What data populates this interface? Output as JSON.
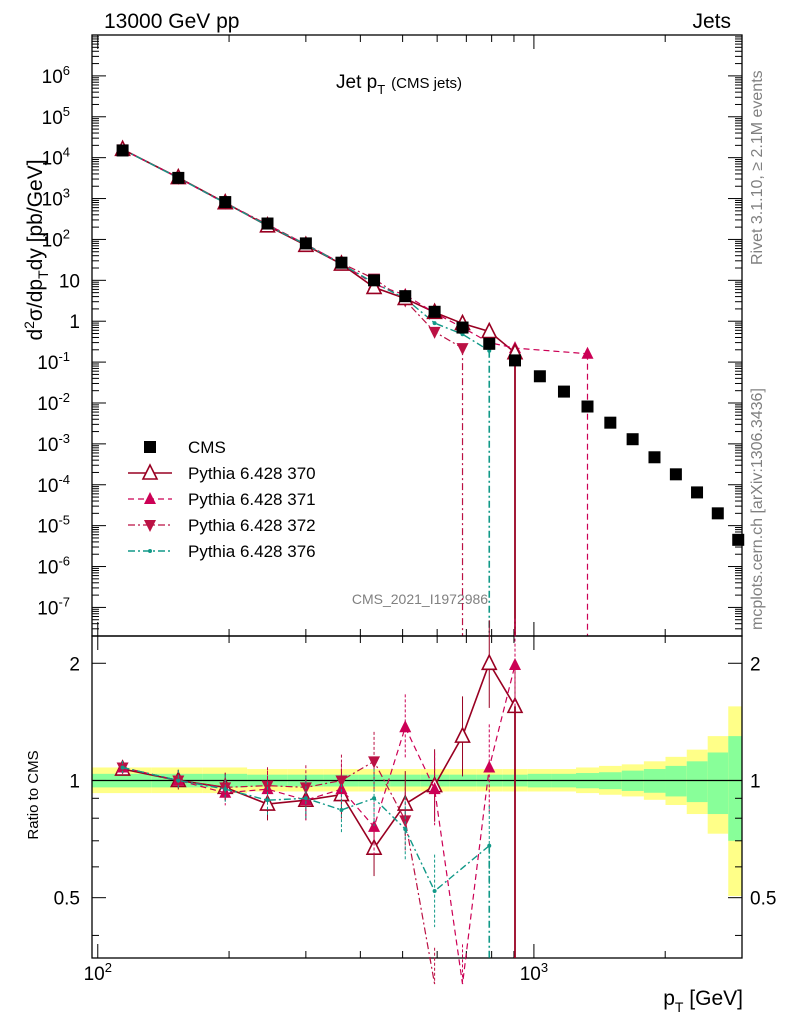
{
  "header": {
    "left": "13000 GeV pp",
    "right": "Jets"
  },
  "side_labels": {
    "rivet": "Rivet 3.1.10, ≥ 2.1M events",
    "mcplots": "mcplots.cern.ch [arXiv:1306.3436]"
  },
  "watermark": "CMS_2021_I1972986",
  "colors": {
    "cms": "#000000",
    "p370": "#990022",
    "p371": "#cc0055",
    "p372": "#bb1144",
    "p376": "#119988",
    "band_yellow": "#ffff88",
    "band_green": "#88ff99"
  },
  "chart_data": [
    {
      "type": "scatter",
      "title": "Jet p_T (CMS jets)",
      "title_main": "Jet p",
      "title_sub": "T",
      "title_note": "(CMS jets)",
      "ylabel": "d²σ/dp_T dy [pb/GeV]",
      "xlabel": "p_T [GeV]",
      "xscale": "log",
      "yscale": "log",
      "xlim": [
        97,
        3000
      ],
      "ylim": [
        2e-08,
        10000000.0
      ],
      "ytick_labels": [
        "10^-7",
        "10^-6",
        "10^-5",
        "10^-4",
        "10^-3",
        "10^-2",
        "10^-1",
        "1",
        "10",
        "10^2",
        "10^3",
        "10^4",
        "10^5",
        "10^6"
      ],
      "xtick_labels": [
        "10^2",
        "10^3"
      ],
      "legend": {
        "position": "bottom-left",
        "entries": [
          "CMS",
          "Pythia 6.428 370",
          "Pythia 6.428 371",
          "Pythia 6.428 372",
          "Pythia 6.428 376"
        ]
      },
      "series": [
        {
          "name": "CMS",
          "style": "square",
          "x": [
            114,
            153,
            196,
            245,
            300,
            362,
            430,
            507,
            592,
            686,
            790,
            905,
            1032,
            1172,
            1327,
            1497,
            1684,
            1890,
            2116,
            2366,
            2640,
            2941
          ],
          "y": [
            15000,
            3200,
            820,
            245,
            80,
            27,
            10,
            4.1,
            1.7,
            0.7,
            0.28,
            0.11,
            0.045,
            0.019,
            0.0082,
            0.0033,
            0.0013,
            0.00047,
            0.00018,
            6.5e-05,
            2e-05,
            4.5e-06
          ]
        },
        {
          "name": "Pythia 6.428 370",
          "style": "open-triangle-solid",
          "x": [
            114,
            153,
            196,
            245,
            300,
            362,
            430,
            507,
            592,
            686,
            790,
            905
          ],
          "y": [
            16000,
            3250,
            790,
            215,
            72,
            25,
            6.7,
            3.6,
            1.65,
            0.88,
            0.56,
            0.17
          ]
        },
        {
          "name": "Pythia 6.428 371",
          "style": "filled-triangle-dashed",
          "x": [
            114,
            153,
            196,
            245,
            300,
            362,
            430,
            507,
            592,
            686,
            790,
            905,
            1327
          ],
          "y": [
            16000,
            3200,
            760,
            230,
            76,
            26,
            8.0,
            4.4,
            1.6,
            0.7,
            0.3,
            0.22,
            0.16
          ]
        },
        {
          "name": "Pythia 6.428 372",
          "style": "filled-down-triangle-dashdot",
          "x": [
            114,
            153,
            196,
            245,
            300,
            362,
            430,
            507,
            592,
            686
          ],
          "y": [
            16000,
            3200,
            790,
            232,
            76,
            26,
            11.0,
            3.2,
            0.55,
            0.22
          ]
        },
        {
          "name": "Pythia 6.428 376",
          "style": "dot-dashdot",
          "x": [
            114,
            153,
            196,
            245,
            300,
            362,
            430,
            507,
            592,
            686,
            790
          ],
          "y": [
            16000,
            3200,
            780,
            218,
            75,
            25,
            8.7,
            3.6,
            0.9,
            0.48,
            0.19
          ]
        }
      ]
    },
    {
      "type": "line",
      "ylabel": "Ratio to CMS",
      "ylim": [
        0.35,
        2.35
      ],
      "ytick_labels": [
        "0.5",
        "1",
        "2"
      ],
      "reference": 1,
      "series": [
        {
          "name": "Pythia 6.428 370",
          "x": [
            114,
            153,
            196,
            245,
            300,
            362,
            430,
            507,
            592,
            686,
            790,
            905
          ],
          "y": [
            1.07,
            1.0,
            0.96,
            0.87,
            0.89,
            0.92,
            0.67,
            0.87,
            0.97,
            1.3,
            2.0,
            1.55
          ]
        },
        {
          "name": "Pythia 6.428 371",
          "x": [
            114,
            153,
            196,
            245,
            300,
            362,
            430,
            507,
            592,
            686,
            790,
            905
          ],
          "y": [
            1.08,
            1.0,
            0.93,
            0.95,
            0.89,
            0.95,
            0.76,
            1.37,
            0.95,
            0.0,
            1.08,
            1.98
          ]
        },
        {
          "name": "Pythia 6.428 372",
          "x": [
            114,
            153,
            196,
            245,
            300,
            362,
            430,
            507,
            592
          ],
          "y": [
            1.08,
            1.0,
            0.96,
            0.97,
            0.96,
            1.0,
            1.12,
            0.79,
            0.0
          ]
        },
        {
          "name": "Pythia 6.428 376",
          "x": [
            114,
            153,
            196,
            245,
            300,
            362,
            430,
            507,
            592,
            790
          ],
          "y": [
            1.08,
            1.0,
            0.95,
            0.89,
            0.9,
            0.84,
            0.9,
            0.75,
            0.52,
            0.68
          ]
        }
      ]
    }
  ]
}
